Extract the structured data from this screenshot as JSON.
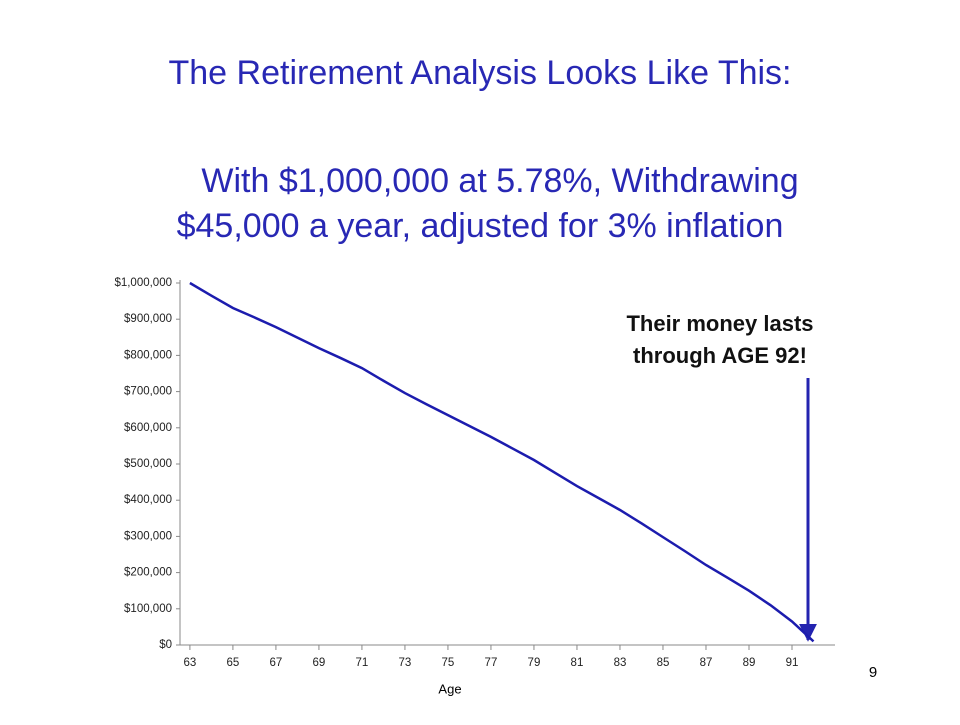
{
  "chart_data": {
    "type": "line",
    "title": "The Retirement Analysis Looks Like This:",
    "subtitle": [
      "With $1,000,000 at 5.78%, Withdrawing",
      "$45,000 a year, adjusted for 3% inflation"
    ],
    "annotation": [
      "Their money lasts",
      "through AGE 92!"
    ],
    "x_label": "Age",
    "x": [
      63,
      64,
      65,
      66,
      67,
      68,
      69,
      70,
      71,
      72,
      73,
      74,
      75,
      76,
      77,
      78,
      79,
      80,
      81,
      82,
      83,
      84,
      85,
      86,
      87,
      88,
      89,
      90,
      91,
      92
    ],
    "series": [
      {
        "color": "#1c1cae",
        "values": [
          1000000,
          965000,
          931000,
          905000,
          878000,
          849000,
          820000,
          793000,
          765000,
          730000,
          696000,
          665000,
          635000,
          605000,
          575000,
          543000,
          511000,
          475000,
          439000,
          406000,
          373000,
          336000,
          298000,
          260000,
          221000,
          186000,
          150000,
          110000,
          65000,
          10000
        ]
      }
    ],
    "xlim": [
      62.4,
      93
    ],
    "ylim": [
      0,
      1000000
    ],
    "xticks": [
      63,
      65,
      67,
      69,
      71,
      73,
      75,
      77,
      79,
      81,
      83,
      85,
      87,
      89,
      91
    ],
    "yticks": [
      {
        "value": 0,
        "label": "$0"
      },
      {
        "value": 100000,
        "label": "$100,000"
      },
      {
        "value": 200000,
        "label": "$200,000"
      },
      {
        "value": 300000,
        "label": "$300,000"
      },
      {
        "value": 400000,
        "label": "$400,000"
      },
      {
        "value": 500000,
        "label": "$500,000"
      },
      {
        "value": 600000,
        "label": "$600,000"
      },
      {
        "value": 700000,
        "label": "$700,000"
      },
      {
        "value": 800000,
        "label": "$800,000"
      },
      {
        "value": 900000,
        "label": "$900,000"
      },
      {
        "value": 1000000,
        "label": "$1,000,000"
      }
    ],
    "grid": false
  },
  "page_number": "9"
}
